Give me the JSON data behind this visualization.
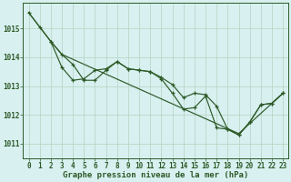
{
  "background_color": "#d8f0f0",
  "grid_color": "#b8d8c8",
  "line_color": "#2d5a27",
  "xlabel": "Graphe pression niveau de la mer (hPa)",
  "xlabel_fontsize": 6.5,
  "tick_fontsize": 5.5,
  "ylabel_ticks": [
    1011,
    1012,
    1013,
    1014,
    1015
  ],
  "xlim": [
    -0.5,
    23.5
  ],
  "ylim": [
    1010.5,
    1015.9
  ],
  "series1": {
    "x": [
      0,
      1,
      2,
      3,
      19,
      23
    ],
    "y": [
      1015.55,
      1015.05,
      1014.55,
      1014.1,
      1011.35,
      1012.75
    ]
  },
  "series2": {
    "x": [
      0,
      1,
      2,
      3,
      4,
      5,
      6,
      7,
      8,
      9,
      10,
      11,
      12,
      13,
      14,
      15,
      16,
      17,
      18,
      19,
      20,
      21,
      22,
      23
    ],
    "y": [
      1015.55,
      1015.05,
      1014.55,
      1014.1,
      1013.75,
      1013.2,
      1013.2,
      1013.55,
      1013.85,
      1013.6,
      1013.55,
      1013.5,
      1013.3,
      1013.05,
      1012.6,
      1012.75,
      1012.7,
      1012.3,
      1011.5,
      1011.3,
      1011.75,
      1012.35,
      1012.4,
      1012.75
    ]
  },
  "series3": {
    "x": [
      2,
      3,
      4,
      5,
      6,
      7,
      8,
      9,
      10,
      11,
      12,
      13,
      14,
      15,
      16,
      17,
      18,
      19,
      20,
      21,
      22,
      23
    ],
    "y": [
      1014.55,
      1013.65,
      1013.2,
      1013.25,
      1013.55,
      1013.6,
      1013.85,
      1013.6,
      1013.55,
      1013.5,
      1013.25,
      1012.75,
      1012.2,
      1012.25,
      1012.65,
      1011.55,
      1011.5,
      1011.3,
      1011.75,
      1012.35,
      1012.4,
      1012.75
    ]
  }
}
